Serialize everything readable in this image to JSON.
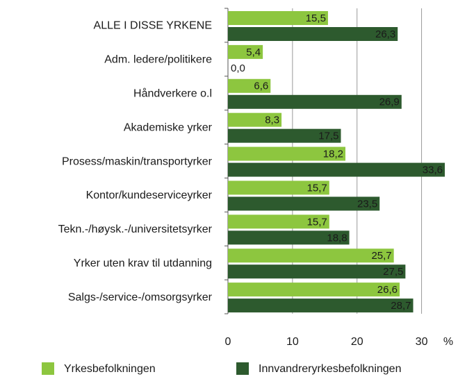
{
  "chart_data": {
    "type": "bar",
    "orientation": "horizontal",
    "categories": [
      "ALLE I DISSE YRKENE",
      "Adm. ledere/politikere",
      "Håndverkere o.l",
      "Akademiske yrker",
      "Prosess/maskin/transportyrker",
      "Kontor/kundeserviceyrker",
      "Tekn.-/høysk.-/universitetsyrker",
      "Yrker uten krav til utdanning",
      "Salgs-/service-/omsorgsyrker"
    ],
    "series": [
      {
        "name": "Yrkesbefolkningen",
        "color": "#8dc63f",
        "values": [
          15.5,
          5.4,
          6.6,
          8.3,
          18.2,
          15.7,
          15.7,
          25.7,
          26.6
        ],
        "value_labels": [
          "15,5",
          "5,4",
          "6,6",
          "8,3",
          "18,2",
          "15,7",
          "15,7",
          "25,7",
          "26,6"
        ]
      },
      {
        "name": "Innvandreryrkesbefolkningen",
        "color": "#2d5a2e",
        "values": [
          26.3,
          0.0,
          26.9,
          17.5,
          33.6,
          23.5,
          18.8,
          27.5,
          28.7
        ],
        "value_labels": [
          "26,3",
          "0,0",
          "26,9",
          "17,5",
          "33,6",
          "23,5",
          "18,8",
          "27,5",
          "28,7"
        ]
      }
    ],
    "x_label": "%",
    "xlim": [
      0,
      35
    ],
    "xticks": [
      0,
      10,
      20,
      30
    ],
    "grid": true,
    "legend": "bottom"
  }
}
